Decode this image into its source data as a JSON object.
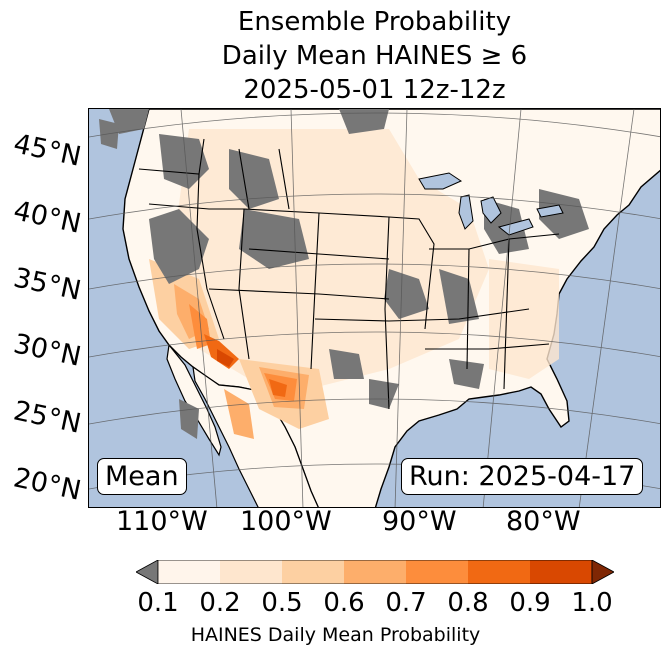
{
  "title": {
    "line1": "Ensemble Probability",
    "line2": "Daily Mean HAINES ≥ 6",
    "line3": "2025-05-01 12z-12z"
  },
  "map": {
    "projection": "lambert-conformal",
    "region": "Continental United States",
    "ocean_color": "#b0c4de",
    "land_color": "#ffffff",
    "missing_color": "#777777",
    "lat_labels": [
      "45°N",
      "40°N",
      "35°N",
      "30°N",
      "25°N",
      "20°N"
    ],
    "lon_labels": [
      "110°W",
      "100°W",
      "90°W",
      "80°W"
    ],
    "highest_probability_areas": [
      "Southern Arizona",
      "Southern New Mexico",
      "West Texas",
      "Northern Mexico"
    ]
  },
  "labels": {
    "mean": "Mean",
    "run": "Run: 2025-04-17"
  },
  "colorbar": {
    "ticks": [
      "0.1",
      "0.2",
      "0.5",
      "0.6",
      "0.7",
      "0.8",
      "0.9",
      "1.0"
    ],
    "colors": [
      "#fff5eb",
      "#fee6ce",
      "#fdd0a2",
      "#fdae6b",
      "#fd8d3c",
      "#f16913",
      "#d94801",
      "#a63603"
    ],
    "under_color": "#777777",
    "over_color": "#7f2704",
    "label": "HAINES Daily Mean Probability"
  }
}
